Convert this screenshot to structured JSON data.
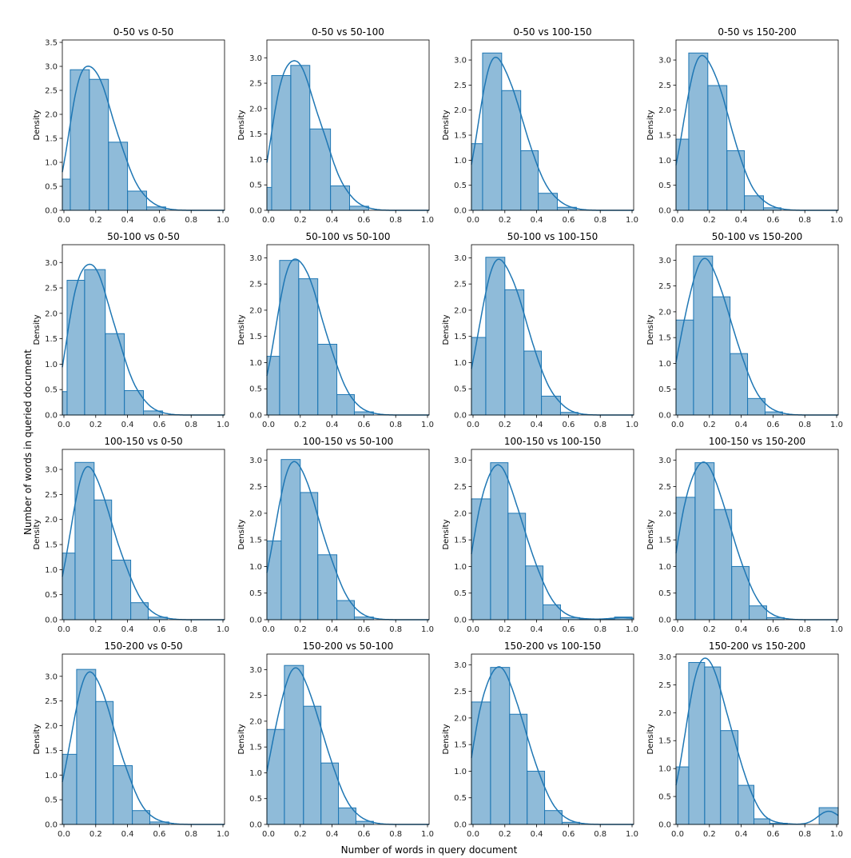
{
  "figure": {
    "xlabel": "Number of words in query document",
    "ylabel": "Number of words in queried document"
  },
  "colors": {
    "bar": "#1f77b4",
    "kde": "#1f77b4"
  },
  "chart_data": [
    {
      "type": "bar",
      "title": "0-50 vs 0-50",
      "ylabel": "Density",
      "xlim": [
        -0.01,
        1.01
      ],
      "ylim": [
        0,
        3.55
      ],
      "yticks": [
        "0.0",
        "0.5",
        "1.0",
        "1.5",
        "2.0",
        "2.5",
        "3.0",
        "3.5"
      ],
      "xticks": [
        "0.0",
        "0.2",
        "0.4",
        "0.6",
        "0.8",
        "1.0"
      ],
      "bin_edges": [
        -0.01,
        0.04,
        0.16,
        0.28,
        0.4,
        0.52,
        0.64
      ],
      "values": [
        0.65,
        2.93,
        2.73,
        1.42,
        0.4,
        0.07
      ]
    },
    {
      "type": "bar",
      "title": "0-50 vs 50-100",
      "ylabel": "Density",
      "xlim": [
        -0.01,
        1.01
      ],
      "ylim": [
        0,
        3.35
      ],
      "yticks": [
        "0.0",
        "0.5",
        "1.0",
        "1.5",
        "2.0",
        "2.5",
        "3.0"
      ],
      "xticks": [
        "0.0",
        "0.2",
        "0.4",
        "0.6",
        "0.8",
        "1.0"
      ],
      "bin_edges": [
        -0.01,
        0.02,
        0.14,
        0.26,
        0.39,
        0.51,
        0.63
      ],
      "values": [
        0.45,
        2.65,
        2.85,
        1.6,
        0.48,
        0.08
      ]
    },
    {
      "type": "bar",
      "title": "0-50 vs 100-150",
      "ylabel": "Density",
      "xlim": [
        -0.01,
        1.01
      ],
      "ylim": [
        0,
        3.4
      ],
      "yticks": [
        "0.0",
        "0.5",
        "1.0",
        "1.5",
        "2.0",
        "2.5",
        "3.0"
      ],
      "xticks": [
        "0.0",
        "0.2",
        "0.4",
        "0.6",
        "0.8",
        "1.0"
      ],
      "bin_edges": [
        -0.01,
        0.06,
        0.18,
        0.3,
        0.41,
        0.53,
        0.65
      ],
      "values": [
        1.33,
        3.14,
        2.39,
        1.19,
        0.34,
        0.06
      ]
    },
    {
      "type": "bar",
      "title": "0-50 vs 150-200",
      "ylabel": "Density",
      "xlim": [
        -0.01,
        1.01
      ],
      "ylim": [
        0,
        3.4
      ],
      "yticks": [
        "0.0",
        "0.5",
        "1.0",
        "1.5",
        "2.0",
        "2.5",
        "3.0"
      ],
      "xticks": [
        "0.0",
        "0.2",
        "0.4",
        "0.6",
        "0.8",
        "1.0"
      ],
      "bin_edges": [
        -0.01,
        0.07,
        0.19,
        0.31,
        0.42,
        0.54,
        0.65
      ],
      "values": [
        1.42,
        3.14,
        2.49,
        1.19,
        0.29,
        0.05
      ]
    },
    {
      "type": "bar",
      "title": "50-100 vs 0-50",
      "ylabel": "Density",
      "xlim": [
        -0.01,
        1.01
      ],
      "ylim": [
        0,
        3.35
      ],
      "yticks": [
        "0.0",
        "0.5",
        "1.0",
        "1.5",
        "2.0",
        "2.5",
        "3.0"
      ],
      "xticks": [
        "0.0",
        "0.2",
        "0.4",
        "0.6",
        "0.8",
        "1.0"
      ],
      "bin_edges": [
        -0.01,
        0.02,
        0.13,
        0.26,
        0.38,
        0.5,
        0.62
      ],
      "values": [
        0.46,
        2.65,
        2.86,
        1.6,
        0.48,
        0.08
      ]
    },
    {
      "type": "bar",
      "title": "50-100 vs 50-100",
      "ylabel": "Density",
      "xlim": [
        -0.01,
        1.01
      ],
      "ylim": [
        0,
        3.25
      ],
      "yticks": [
        "0.0",
        "0.5",
        "1.0",
        "1.5",
        "2.0",
        "2.5",
        "3.0"
      ],
      "xticks": [
        "0.0",
        "0.2",
        "0.4",
        "0.6",
        "0.8",
        "1.0"
      ],
      "bin_edges": [
        -0.01,
        0.07,
        0.19,
        0.31,
        0.43,
        0.54,
        0.66
      ],
      "values": [
        1.12,
        2.95,
        2.6,
        1.35,
        0.39,
        0.06
      ]
    },
    {
      "type": "bar",
      "title": "50-100 vs 100-150",
      "ylabel": "Density",
      "xlim": [
        -0.01,
        1.01
      ],
      "ylim": [
        0,
        3.25
      ],
      "yticks": [
        "0.0",
        "0.5",
        "1.0",
        "1.5",
        "2.0",
        "2.5",
        "3.0"
      ],
      "xticks": [
        "0.0",
        "0.2",
        "0.4",
        "0.6",
        "0.8",
        "1.0"
      ],
      "bin_edges": [
        -0.01,
        0.08,
        0.2,
        0.32,
        0.43,
        0.55,
        0.66
      ],
      "values": [
        1.48,
        3.01,
        2.39,
        1.22,
        0.36,
        0.05
      ]
    },
    {
      "type": "bar",
      "title": "50-100 vs 150-200",
      "ylabel": "Density",
      "xlim": [
        -0.01,
        1.01
      ],
      "ylim": [
        0,
        3.3
      ],
      "yticks": [
        "0.0",
        "0.5",
        "1.0",
        "1.5",
        "2.0",
        "2.5",
        "3.0"
      ],
      "xticks": [
        "0.0",
        "0.2",
        "0.4",
        "0.6",
        "0.8",
        "1.0"
      ],
      "bin_edges": [
        -0.01,
        0.1,
        0.22,
        0.33,
        0.44,
        0.55,
        0.66
      ],
      "values": [
        1.84,
        3.08,
        2.29,
        1.19,
        0.32,
        0.06
      ]
    },
    {
      "type": "bar",
      "title": "100-150 vs 0-50",
      "ylabel": "Density",
      "xlim": [
        -0.01,
        1.01
      ],
      "ylim": [
        0,
        3.4
      ],
      "yticks": [
        "0.0",
        "0.5",
        "1.0",
        "1.5",
        "2.0",
        "2.5",
        "3.0"
      ],
      "xticks": [
        "0.0",
        "0.2",
        "0.4",
        "0.6",
        "0.8",
        "1.0"
      ],
      "bin_edges": [
        -0.01,
        0.07,
        0.19,
        0.3,
        0.42,
        0.53,
        0.65
      ],
      "values": [
        1.33,
        3.14,
        2.39,
        1.19,
        0.34,
        0.05
      ]
    },
    {
      "type": "bar",
      "title": "100-150 vs 50-100",
      "ylabel": "Density",
      "xlim": [
        -0.01,
        1.01
      ],
      "ylim": [
        0,
        3.2
      ],
      "yticks": [
        "0.0",
        "0.5",
        "1.0",
        "1.5",
        "2.0",
        "2.5",
        "3.0"
      ],
      "xticks": [
        "0.0",
        "0.2",
        "0.4",
        "0.6",
        "0.8",
        "1.0"
      ],
      "bin_edges": [
        -0.01,
        0.08,
        0.2,
        0.31,
        0.43,
        0.54,
        0.66
      ],
      "values": [
        1.48,
        3.01,
        2.39,
        1.22,
        0.36,
        0.05
      ]
    },
    {
      "type": "bar",
      "title": "100-150 vs 100-150",
      "ylabel": "Density",
      "xlim": [
        -0.01,
        1.01
      ],
      "ylim": [
        0,
        3.2
      ],
      "yticks": [
        "0.0",
        "0.5",
        "1.0",
        "1.5",
        "2.0",
        "2.5",
        "3.0"
      ],
      "xticks": [
        "0.0",
        "0.2",
        "0.4",
        "0.6",
        "0.8",
        "1.0"
      ],
      "bin_edges": [
        -0.01,
        0.11,
        0.22,
        0.33,
        0.44,
        0.55,
        0.67,
        0.78,
        0.89,
        1.0
      ],
      "values": [
        2.27,
        2.95,
        2.0,
        1.01,
        0.28,
        0.04,
        0.01,
        0.01,
        0.05
      ]
    },
    {
      "type": "bar",
      "title": "100-150 vs 150-200",
      "ylabel": "Density",
      "xlim": [
        -0.01,
        1.01
      ],
      "ylim": [
        0,
        3.2
      ],
      "yticks": [
        "0.0",
        "0.5",
        "1.0",
        "1.5",
        "2.0",
        "2.5",
        "3.0"
      ],
      "xticks": [
        "0.0",
        "0.2",
        "0.4",
        "0.6",
        "0.8",
        "1.0"
      ],
      "bin_edges": [
        -0.01,
        0.11,
        0.23,
        0.34,
        0.45,
        0.56,
        0.67
      ],
      "values": [
        2.3,
        2.95,
        2.07,
        1.0,
        0.26,
        0.04
      ]
    },
    {
      "type": "bar",
      "title": "150-200 vs 0-50",
      "ylabel": "Density",
      "xlim": [
        -0.01,
        1.01
      ],
      "ylim": [
        0,
        3.45
      ],
      "yticks": [
        "0.0",
        "0.5",
        "1.0",
        "1.5",
        "2.0",
        "2.5",
        "3.0"
      ],
      "xticks": [
        "0.0",
        "0.2",
        "0.4",
        "0.6",
        "0.8",
        "1.0"
      ],
      "bin_edges": [
        -0.01,
        0.08,
        0.2,
        0.31,
        0.43,
        0.54,
        0.66
      ],
      "values": [
        1.42,
        3.14,
        2.49,
        1.19,
        0.28,
        0.05
      ]
    },
    {
      "type": "bar",
      "title": "150-200 vs 50-100",
      "ylabel": "Density",
      "xlim": [
        -0.01,
        1.01
      ],
      "ylim": [
        0,
        3.3
      ],
      "yticks": [
        "0.0",
        "0.5",
        "1.0",
        "1.5",
        "2.0",
        "2.5",
        "3.0"
      ],
      "xticks": [
        "0.0",
        "0.2",
        "0.4",
        "0.6",
        "0.8",
        "1.0"
      ],
      "bin_edges": [
        -0.01,
        0.1,
        0.22,
        0.33,
        0.44,
        0.55,
        0.66
      ],
      "values": [
        1.84,
        3.08,
        2.29,
        1.19,
        0.32,
        0.06
      ]
    },
    {
      "type": "bar",
      "title": "150-200 vs 100-150",
      "ylabel": "Density",
      "xlim": [
        -0.01,
        1.01
      ],
      "ylim": [
        0,
        3.2
      ],
      "yticks": [
        "0.0",
        "0.5",
        "1.0",
        "1.5",
        "2.0",
        "2.5",
        "3.0"
      ],
      "xticks": [
        "0.0",
        "0.2",
        "0.4",
        "0.6",
        "0.8",
        "1.0"
      ],
      "bin_edges": [
        -0.01,
        0.11,
        0.23,
        0.34,
        0.45,
        0.56,
        0.67
      ],
      "values": [
        2.3,
        2.95,
        2.07,
        1.0,
        0.26,
        0.04
      ]
    },
    {
      "type": "bar",
      "title": "150-200 vs 150-200",
      "ylabel": "Density",
      "xlim": [
        -0.01,
        1.01
      ],
      "ylim": [
        0,
        3.05
      ],
      "yticks": [
        "0.0",
        "0.5",
        "1.0",
        "1.5",
        "2.0",
        "2.5",
        "3.0"
      ],
      "xticks": [
        "0.0",
        "0.2",
        "0.4",
        "0.6",
        "0.8",
        "1.0"
      ],
      "bin_edges": [
        -0.01,
        0.07,
        0.17,
        0.27,
        0.38,
        0.48,
        0.58,
        0.69,
        0.79,
        0.89,
        1.01
      ],
      "values": [
        1.03,
        2.9,
        2.82,
        1.68,
        0.7,
        0.1,
        0.02,
        0,
        0,
        0.3
      ]
    }
  ]
}
